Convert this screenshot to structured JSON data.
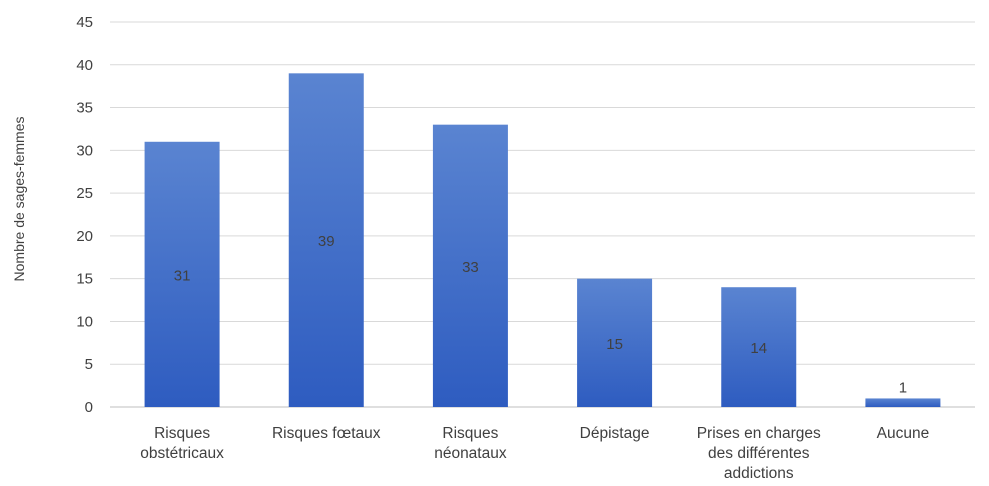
{
  "chart_data": {
    "type": "bar",
    "title": "",
    "xlabel": "",
    "ylabel": "Nombre de sages-femmes",
    "ylim": [
      0,
      45
    ],
    "ytick_step": 5,
    "yticks": [
      "0",
      "5",
      "10",
      "15",
      "20",
      "25",
      "30",
      "35",
      "40",
      "45"
    ],
    "grid": true,
    "legend": "none",
    "bar_color_top": "#5a84d1",
    "bar_color_bottom": "#2e5cc0",
    "categories": [
      [
        "Risques",
        "obstétricaux"
      ],
      [
        "Risques fœtaux"
      ],
      [
        "Risques",
        "néonataux"
      ],
      [
        "Dépistage"
      ],
      [
        "Prises en charges",
        "des différentes",
        "addictions"
      ],
      [
        "Aucune"
      ]
    ],
    "values": [
      31,
      39,
      33,
      15,
      14,
      1
    ],
    "data_labels": [
      "31",
      "39",
      "33",
      "15",
      "14",
      "1"
    ]
  }
}
